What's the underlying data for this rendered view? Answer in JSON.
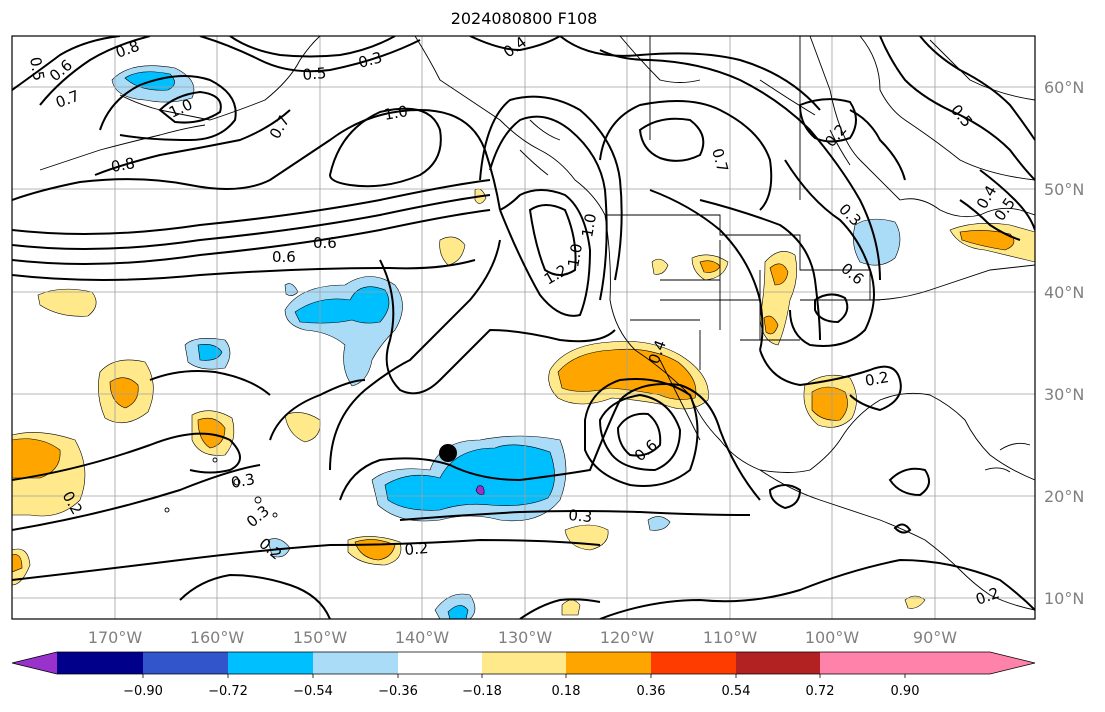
{
  "title": "2024080800 F108",
  "map": {
    "lon_labels": [
      "170°W",
      "160°W",
      "150°W",
      "140°W",
      "130°W",
      "120°W",
      "110°W",
      "100°W",
      "90°W"
    ],
    "lat_labels": [
      "60°N",
      "50°N",
      "40°N",
      "30°N",
      "20°N",
      "10°N"
    ],
    "contour_labels": [
      "0.5",
      "0.6",
      "0.7",
      "0.8",
      "1.0",
      "0.3",
      "0.4",
      "1.0",
      "0.5",
      "0.6",
      "0.8",
      "0.7",
      "1.0",
      "0.6",
      "0.7",
      "1.2",
      "1.0",
      "0.4",
      "0.6",
      "0.2",
      "0.3",
      "0.5",
      "0.6",
      "0.2",
      "0.3",
      "0.4",
      "0.5",
      "0.2",
      "0.3",
      "0.2",
      "0.3",
      "0.2",
      "0.2"
    ]
  },
  "colorbar": {
    "ticks": [
      "−0.90",
      "−0.72",
      "−0.54",
      "−0.36",
      "−0.18",
      "0.18",
      "0.36",
      "0.54",
      "0.72",
      "0.90"
    ],
    "colors": [
      "#9932cc",
      "#00008b",
      "#3355cc",
      "#00bfff",
      "#aadcf7",
      "#ffffff",
      "#ffe98a",
      "#ffa500",
      "#ff3c00",
      "#b22222",
      "#ff82ab"
    ]
  }
}
